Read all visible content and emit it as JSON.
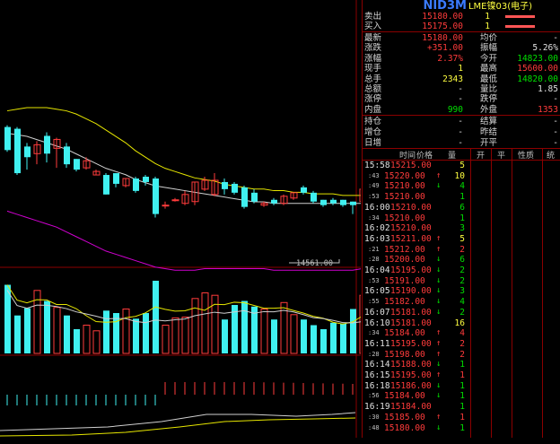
{
  "quote": {
    "title": "NID3M",
    "subtitle": "LME镍03(电子)",
    "sell": {
      "label": "卖出",
      "price": "15180.00",
      "vol": "1"
    },
    "buy": {
      "label": "买入",
      "price": "15175.00",
      "vol": "1"
    },
    "stats": [
      {
        "l1": "最新",
        "v1": "15180.00",
        "c1": "red",
        "l2": "均价",
        "v2": "-",
        "c2": "wht"
      },
      {
        "l1": "涨跌",
        "v1": "+351.00",
        "c1": "red",
        "l2": "振幅",
        "v2": "5.26%",
        "c2": "wht"
      },
      {
        "l1": "涨幅",
        "v1": "2.37%",
        "c1": "red",
        "l2": "今开",
        "v2": "14823.00",
        "c2": "grn"
      },
      {
        "l1": "现手",
        "v1": "1",
        "c1": "yel",
        "l2": "最高",
        "v2": "15600.00",
        "c2": "red"
      },
      {
        "l1": "总手",
        "v1": "2343",
        "c1": "yel",
        "l2": "最低",
        "v2": "14820.00",
        "c2": "grn"
      },
      {
        "l1": "总额",
        "v1": "-",
        "c1": "wht",
        "l2": "量比",
        "v2": "1.85",
        "c2": "wht"
      },
      {
        "l1": "涨停",
        "v1": "-",
        "c1": "wht",
        "l2": "跌停",
        "v2": "-",
        "c2": "wht"
      },
      {
        "l1": "内盘",
        "v1": "990",
        "c1": "grn",
        "l2": "外盘",
        "v2": "1353",
        "c2": "red"
      }
    ],
    "stats2": [
      {
        "l1": "持仓",
        "v1": "-",
        "l2": "结算",
        "v2": "-"
      },
      {
        "l1": "增仓",
        "v1": "-",
        "l2": "昨结",
        "v2": "-"
      },
      {
        "l1": "日增",
        "v1": "-",
        "l2": "开平",
        "v2": "-"
      }
    ]
  },
  "ticks_header": [
    "时间",
    "价格",
    "量",
    "开",
    "平",
    "性质",
    "统"
  ],
  "ticks": [
    {
      "t": "15:58",
      "p": "15215.00",
      "v": "5",
      "d": "",
      "vc": "yel",
      "bar": 0,
      "small": false
    },
    {
      "t": ":43",
      "p": "15220.00",
      "v": "10",
      "d": "up",
      "vc": "yel",
      "bar": 0,
      "small": true
    },
    {
      "t": ":49",
      "p": "15210.00",
      "v": "4",
      "d": "dn",
      "vc": "grn",
      "bar": 0,
      "small": true
    },
    {
      "t": ":53",
      "p": "15210.00",
      "v": "1",
      "d": "",
      "vc": "grn",
      "bar": 0,
      "small": true
    },
    {
      "t": "16:00",
      "p": "15210.00",
      "v": "6",
      "d": "",
      "vc": "grn",
      "bar": 0,
      "small": false
    },
    {
      "t": ":34",
      "p": "15210.00",
      "v": "1",
      "d": "",
      "vc": "grn",
      "bar": 0,
      "small": true
    },
    {
      "t": "16:02",
      "p": "15210.00",
      "v": "3",
      "d": "",
      "vc": "grn",
      "bar": 0,
      "small": false
    },
    {
      "t": "16:03",
      "p": "15211.00",
      "v": "5",
      "d": "up",
      "vc": "yel",
      "bar": 0,
      "small": false
    },
    {
      "t": ":21",
      "p": "15212.00",
      "v": "2",
      "d": "up",
      "vc": "red",
      "bar": 0,
      "small": true
    },
    {
      "t": ":28",
      "p": "15200.00",
      "v": "6",
      "d": "dn",
      "vc": "grn",
      "bar": 0,
      "small": true
    },
    {
      "t": "16:04",
      "p": "15195.00",
      "v": "2",
      "d": "dn",
      "vc": "grn",
      "bar": 0,
      "small": false
    },
    {
      "t": ":53",
      "p": "15191.00",
      "v": "2",
      "d": "dn",
      "vc": "grn",
      "bar": 0,
      "small": true
    },
    {
      "t": "16:05",
      "p": "15190.00",
      "v": "3",
      "d": "dn",
      "vc": "grn",
      "bar": 0,
      "small": false
    },
    {
      "t": ":55",
      "p": "15182.00",
      "v": "4",
      "d": "dn",
      "vc": "grn",
      "bar": 0,
      "small": true
    },
    {
      "t": "16:07",
      "p": "15181.00",
      "v": "2",
      "d": "dn",
      "vc": "grn",
      "bar": 0,
      "small": false
    },
    {
      "t": "16:10",
      "p": "15181.00",
      "v": "16",
      "d": "",
      "vc": "yel",
      "bar": 0,
      "small": false
    },
    {
      "t": ":34",
      "p": "15184.00",
      "v": "4",
      "d": "up",
      "vc": "red",
      "bar": 0,
      "small": true
    },
    {
      "t": "16:11",
      "p": "15195.00",
      "v": "2",
      "d": "up",
      "vc": "red",
      "bar": 0,
      "small": false
    },
    {
      "t": ":28",
      "p": "15198.00",
      "v": "2",
      "d": "up",
      "vc": "red",
      "bar": 0,
      "small": true
    },
    {
      "t": "16:14",
      "p": "15188.00",
      "v": "1",
      "d": "dn",
      "vc": "grn",
      "bar": 0,
      "small": false
    },
    {
      "t": "16:15",
      "p": "15195.00",
      "v": "1",
      "d": "up",
      "vc": "red",
      "bar": 0,
      "small": false
    },
    {
      "t": "16:18",
      "p": "15186.00",
      "v": "1",
      "d": "dn",
      "vc": "grn",
      "bar": 0,
      "small": false
    },
    {
      "t": ":56",
      "p": "15184.00",
      "v": "1",
      "d": "dn",
      "vc": "grn",
      "bar": 0,
      "small": true
    },
    {
      "t": "16:19",
      "p": "15184.00",
      "v": "1",
      "d": "",
      "vc": "grn",
      "bar": 0,
      "small": false
    },
    {
      "t": ":30",
      "p": "15185.00",
      "v": "1",
      "d": "up",
      "vc": "red",
      "bar": 0,
      "small": true
    },
    {
      "t": ":48",
      "p": "15180.00",
      "v": "1",
      "d": "dn",
      "vc": "grn",
      "bar": 0,
      "small": true
    },
    {
      "t": "",
      "p": "",
      "v": "",
      "d": "",
      "vc": "wht",
      "bar": 0,
      "small": true
    }
  ],
  "chart_data": {
    "type": "candlestick",
    "price_label": "14561.00",
    "candles": [
      {
        "o": 0.66,
        "c": 0.79,
        "h": 0.8,
        "l": 0.65,
        "up": false
      },
      {
        "o": 0.53,
        "c": 0.78,
        "h": 0.79,
        "l": 0.52,
        "up": false
      },
      {
        "o": 0.62,
        "c": 0.68,
        "h": 0.7,
        "l": 0.55,
        "up": false
      },
      {
        "o": 0.69,
        "c": 0.64,
        "h": 0.71,
        "l": 0.58,
        "up": true
      },
      {
        "o": 0.64,
        "c": 0.74,
        "h": 0.76,
        "l": 0.59,
        "up": false
      },
      {
        "o": 0.72,
        "c": 0.67,
        "h": 0.73,
        "l": 0.56,
        "up": true
      },
      {
        "o": 0.58,
        "c": 0.68,
        "h": 0.7,
        "l": 0.56,
        "up": false
      },
      {
        "o": 0.55,
        "c": 0.61,
        "h": 0.61,
        "l": 0.54,
        "up": false
      },
      {
        "o": 0.6,
        "c": 0.56,
        "h": 0.62,
        "l": 0.55,
        "up": true
      },
      {
        "o": 0.54,
        "c": 0.52,
        "h": 0.55,
        "l": 0.52,
        "up": true
      },
      {
        "o": 0.41,
        "c": 0.52,
        "h": 0.53,
        "l": 0.41,
        "up": false
      },
      {
        "o": 0.47,
        "c": 0.53,
        "h": 0.53,
        "l": 0.45,
        "up": false
      },
      {
        "o": 0.5,
        "c": 0.46,
        "h": 0.5,
        "l": 0.45,
        "up": true
      },
      {
        "o": 0.43,
        "c": 0.5,
        "h": 0.51,
        "l": 0.42,
        "up": false
      },
      {
        "o": 0.48,
        "c": 0.51,
        "h": 0.52,
        "l": 0.46,
        "up": false
      },
      {
        "o": 0.3,
        "c": 0.5,
        "h": 0.51,
        "l": 0.28,
        "up": false
      },
      {
        "o": 0.35,
        "c": 0.35,
        "h": 0.37,
        "l": 0.33,
        "up": true
      },
      {
        "o": 0.38,
        "c": 0.38,
        "h": 0.39,
        "l": 0.37,
        "up": true
      },
      {
        "o": 0.36,
        "c": 0.41,
        "h": 0.43,
        "l": 0.35,
        "up": true
      },
      {
        "o": 0.37,
        "c": 0.48,
        "h": 0.48,
        "l": 0.35,
        "up": true
      },
      {
        "o": 0.44,
        "c": 0.49,
        "h": 0.51,
        "l": 0.43,
        "up": true
      },
      {
        "o": 0.41,
        "c": 0.49,
        "h": 0.53,
        "l": 0.4,
        "up": true
      },
      {
        "o": 0.44,
        "c": 0.48,
        "h": 0.5,
        "l": 0.41,
        "up": false
      },
      {
        "o": 0.42,
        "c": 0.47,
        "h": 0.48,
        "l": 0.41,
        "up": false
      },
      {
        "o": 0.34,
        "c": 0.45,
        "h": 0.46,
        "l": 0.33,
        "up": false
      },
      {
        "o": 0.37,
        "c": 0.42,
        "h": 0.44,
        "l": 0.36,
        "up": false
      },
      {
        "o": 0.35,
        "c": 0.36,
        "h": 0.37,
        "l": 0.34,
        "up": true
      },
      {
        "o": 0.36,
        "c": 0.38,
        "h": 0.39,
        "l": 0.35,
        "up": false
      },
      {
        "o": 0.36,
        "c": 0.4,
        "h": 0.41,
        "l": 0.35,
        "up": true
      },
      {
        "o": 0.39,
        "c": 0.42,
        "h": 0.42,
        "l": 0.38,
        "up": true
      },
      {
        "o": 0.42,
        "c": 0.45,
        "h": 0.46,
        "l": 0.41,
        "up": false
      },
      {
        "o": 0.37,
        "c": 0.42,
        "h": 0.43,
        "l": 0.36,
        "up": false
      },
      {
        "o": 0.35,
        "c": 0.38,
        "h": 0.38,
        "l": 0.34,
        "up": false
      },
      {
        "o": 0.36,
        "c": 0.38,
        "h": 0.39,
        "l": 0.35,
        "up": false
      },
      {
        "o": 0.35,
        "c": 0.38,
        "h": 0.38,
        "l": 0.34,
        "up": false
      },
      {
        "o": 0.35,
        "c": 0.37,
        "h": 0.37,
        "l": 0.3,
        "up": false
      },
      {
        "o": 0.37,
        "c": 0.44,
        "h": 0.55,
        "l": 0.36,
        "up": true
      }
    ],
    "volumes": [
      0.85,
      0.47,
      0.56,
      0.78,
      0.65,
      0.57,
      0.47,
      0.3,
      0.35,
      0.28,
      0.53,
      0.5,
      0.55,
      0.43,
      0.5,
      0.9,
      0.35,
      0.44,
      0.45,
      0.68,
      0.75,
      0.72,
      0.42,
      0.6,
      0.65,
      0.58,
      0.55,
      0.42,
      0.63,
      0.48,
      0.42,
      0.35,
      0.3,
      0.38,
      0.37,
      0.55,
      0.72
    ],
    "volumes_up": [
      false,
      false,
      false,
      true,
      false,
      true,
      false,
      false,
      true,
      true,
      false,
      false,
      true,
      false,
      false,
      false,
      true,
      true,
      true,
      true,
      true,
      true,
      false,
      false,
      false,
      false,
      true,
      false,
      true,
      true,
      false,
      false,
      false,
      false,
      false,
      false,
      true
    ],
    "ma_yellow": [
      0.98,
      0.99,
      1.0,
      1.0,
      1.0,
      0.99,
      0.98,
      0.96,
      0.93,
      0.9,
      0.86,
      0.82,
      0.78,
      0.73,
      0.69,
      0.65,
      0.62,
      0.6,
      0.58,
      0.56,
      0.55,
      0.54,
      0.52,
      0.51,
      0.5,
      0.49,
      0.49,
      0.48,
      0.48,
      0.47,
      0.47,
      0.46,
      0.46,
      0.46,
      0.45,
      0.45,
      0.45
    ],
    "ma_white": [
      0.84,
      0.83,
      0.82,
      0.8,
      0.78,
      0.76,
      0.74,
      0.71,
      0.68,
      0.65,
      0.62,
      0.6,
      0.58,
      0.55,
      0.53,
      0.51,
      0.5,
      0.49,
      0.48,
      0.47,
      0.46,
      0.45,
      0.44,
      0.43,
      0.42,
      0.41,
      0.41,
      0.4,
      0.4,
      0.4,
      0.4,
      0.4,
      0.4,
      0.4,
      0.4,
      0.4,
      0.4
    ],
    "ma_magenta": [
      0.7,
      0.68,
      0.66,
      0.64,
      0.62,
      0.6,
      0.57,
      0.54,
      0.51,
      0.48,
      0.45,
      0.43,
      0.41,
      0.39,
      0.37,
      0.35,
      0.34,
      0.33,
      0.33,
      0.33,
      0.34,
      0.34,
      0.34,
      0.34,
      0.34,
      0.34,
      0.34,
      0.33,
      0.33,
      0.33,
      0.33,
      0.33,
      0.33,
      0.33,
      0.33,
      0.33,
      0.34
    ],
    "macd": [
      -0.1,
      -0.1,
      -0.1,
      -0.1,
      -0.1,
      -0.1,
      -0.1,
      -0.1,
      -0.1,
      -0.1,
      -0.1,
      -0.1,
      -0.1,
      -0.1,
      -0.1,
      -0.1,
      0.1,
      0.1,
      0.1,
      0.1,
      0.1,
      0.1,
      0.1,
      0.1,
      0.1,
      0.1,
      0.1,
      0.1,
      0.1,
      0.1,
      0.1,
      0.1,
      0.1,
      0.1,
      0.1,
      0.1,
      0.1
    ]
  }
}
